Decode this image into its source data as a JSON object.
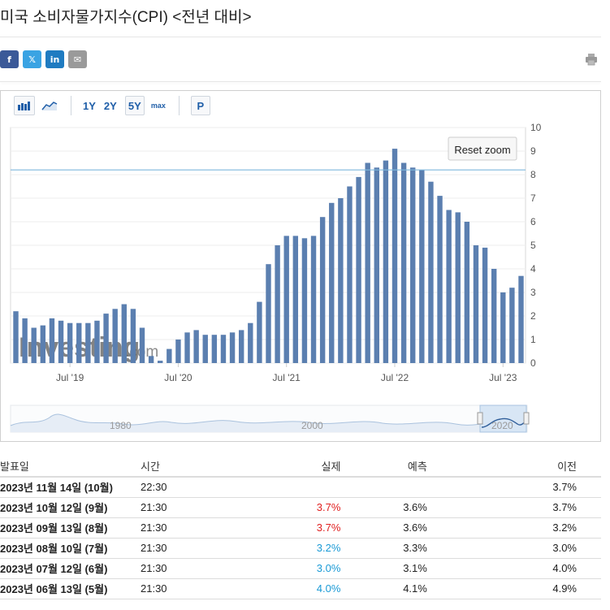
{
  "page": {
    "title": "미국 소비자물가지수(CPI) <전년 대비>"
  },
  "share": [
    {
      "name": "facebook",
      "glyph": "f",
      "color": "#3b5998"
    },
    {
      "name": "x",
      "glyph": "𝕏",
      "color": "#3aa3e3"
    },
    {
      "name": "linkedin",
      "glyph": "in",
      "color": "#1f7bc1"
    },
    {
      "name": "email",
      "glyph": "✉",
      "color": "#9a9a9a"
    }
  ],
  "toolbar": {
    "ranges": [
      "1Y",
      "2Y",
      "5Y",
      "max"
    ],
    "active_range": "5Y",
    "p_label": "P",
    "reset_zoom": "Reset zoom"
  },
  "watermark": {
    "brand": "Investing",
    "suffix": ".com"
  },
  "chart_data": {
    "type": "bar",
    "y_ticks": [
      "0",
      "1",
      "2",
      "3",
      "4",
      "5",
      "6",
      "7",
      "8",
      "9",
      "10"
    ],
    "ylim": [
      0,
      10
    ],
    "x_tick_labels": [
      "Jul '19",
      "Jul '20",
      "Jul '21",
      "Jul '22",
      "Jul '23"
    ],
    "reference_line": 8.2,
    "values": [
      2.2,
      1.9,
      1.5,
      1.6,
      1.9,
      1.8,
      1.7,
      1.7,
      1.7,
      1.8,
      2.1,
      2.3,
      2.5,
      2.3,
      1.5,
      0.3,
      0.1,
      0.6,
      1.0,
      1.3,
      1.4,
      1.2,
      1.2,
      1.2,
      1.3,
      1.4,
      1.7,
      2.6,
      4.2,
      5.0,
      5.4,
      5.4,
      5.3,
      5.4,
      6.2,
      6.8,
      7.0,
      7.5,
      7.9,
      8.5,
      8.3,
      8.6,
      9.1,
      8.5,
      8.3,
      8.2,
      7.7,
      7.1,
      6.5,
      6.4,
      6.0,
      5.0,
      4.9,
      4.0,
      3.0,
      3.2,
      3.7
    ],
    "navigator_labels": [
      "1980",
      "2000",
      "2020"
    ]
  },
  "table": {
    "headers": [
      "발표일",
      "시간",
      "실제",
      "예측",
      "이전"
    ],
    "rows": [
      {
        "date": "2023년 11월 14일 (10월)",
        "time": "22:30",
        "actual": "",
        "actual_color": "",
        "forecast": "",
        "previous": "3.7%"
      },
      {
        "date": "2023년 10월 12일 (9월)",
        "time": "21:30",
        "actual": "3.7%",
        "actual_color": "red",
        "forecast": "3.6%",
        "previous": "3.7%"
      },
      {
        "date": "2023년 09월 13일 (8월)",
        "time": "21:30",
        "actual": "3.7%",
        "actual_color": "red",
        "forecast": "3.6%",
        "previous": "3.2%"
      },
      {
        "date": "2023년 08월 10일 (7월)",
        "time": "21:30",
        "actual": "3.2%",
        "actual_color": "blue",
        "forecast": "3.3%",
        "previous": "3.0%"
      },
      {
        "date": "2023년 07월 12일 (6월)",
        "time": "21:30",
        "actual": "3.0%",
        "actual_color": "blue",
        "forecast": "3.1%",
        "previous": "4.0%"
      },
      {
        "date": "2023년 06월 13일 (5월)",
        "time": "21:30",
        "actual": "4.0%",
        "actual_color": "blue",
        "forecast": "4.1%",
        "previous": "4.9%"
      }
    ]
  }
}
